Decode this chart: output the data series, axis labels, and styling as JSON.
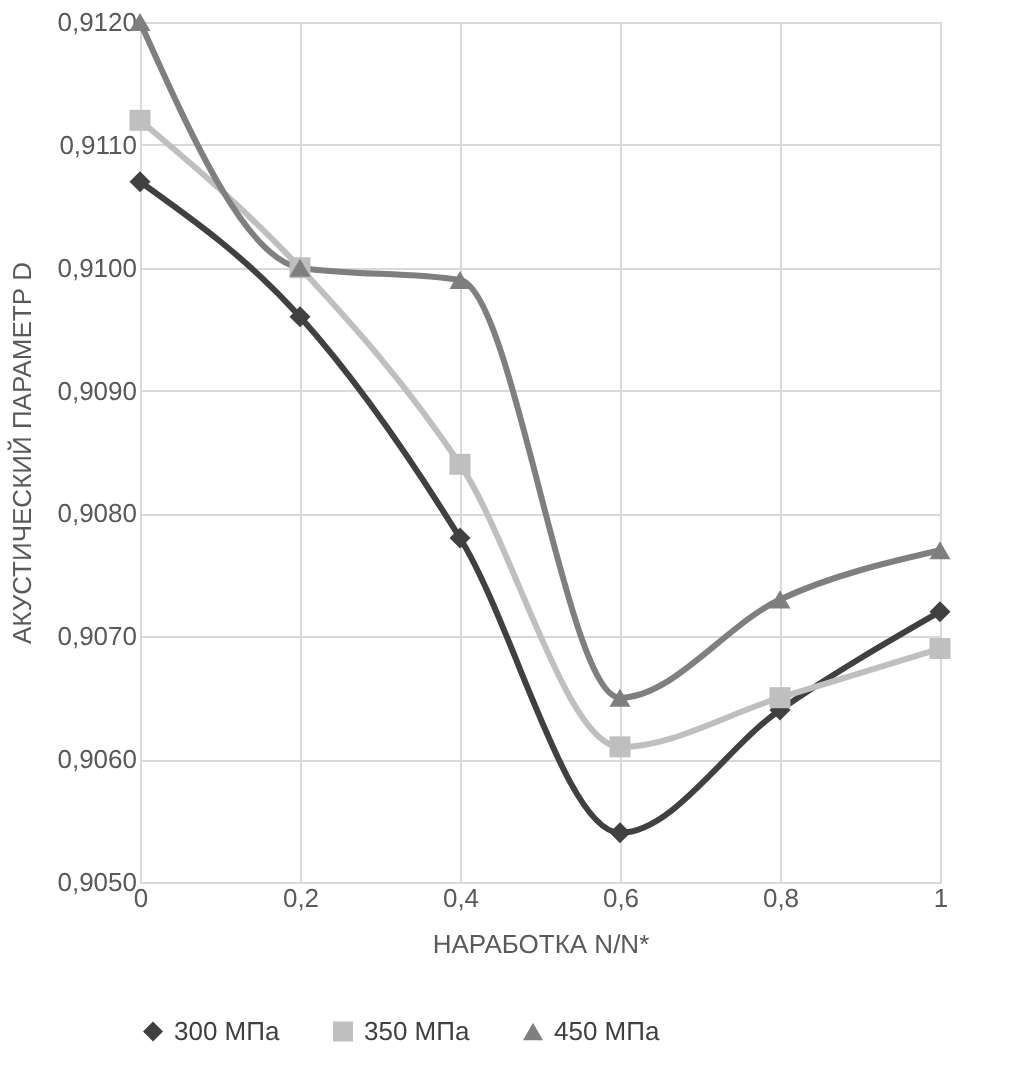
{
  "chart_data": {
    "type": "line",
    "xlabel": "НАРАБОТКА N/N*",
    "ylabel": "АКУСТИЧЕСКИЙ ПАРАМЕТР D",
    "x": [
      0,
      0.2,
      0.4,
      0.6,
      0.8,
      1
    ],
    "series": [
      {
        "name": "300 МПа",
        "color": "#404040",
        "marker": "diamond",
        "values": [
          0.9107,
          0.9096,
          0.9078,
          0.9054,
          0.9064,
          0.9072
        ]
      },
      {
        "name": "350 МПа",
        "color": "#bfbfbf",
        "marker": "square",
        "values": [
          0.9112,
          0.91,
          0.9084,
          0.9061,
          0.9065,
          0.9069
        ]
      },
      {
        "name": "450 МПа",
        "color": "#7f7f7f",
        "marker": "triangle",
        "values": [
          0.912,
          0.91,
          0.9099,
          0.9065,
          0.9073,
          0.9077
        ]
      }
    ],
    "xlim": [
      0,
      1
    ],
    "xticks": [
      0,
      {
        "value": 0.2,
        "label": "0,2"
      },
      {
        "value": 0.4,
        "label": "0,4"
      },
      {
        "value": 0.6,
        "label": "0,6"
      },
      {
        "value": 0.8,
        "label": "0,8"
      },
      1
    ],
    "ylim": [
      0.905,
      0.912
    ],
    "yticks": [
      {
        "value": 0.905,
        "label": "0,9050"
      },
      {
        "value": 0.906,
        "label": "0,9060"
      },
      {
        "value": 0.907,
        "label": "0,9070"
      },
      {
        "value": 0.908,
        "label": "0,9080"
      },
      {
        "value": 0.909,
        "label": "0,9090"
      },
      {
        "value": 0.91,
        "label": "0,9100"
      },
      {
        "value": 0.911,
        "label": "0,9110"
      },
      {
        "value": 0.912,
        "label": "0,9120"
      }
    ],
    "grid": true,
    "legend": "bottom",
    "line_style": "solid"
  }
}
